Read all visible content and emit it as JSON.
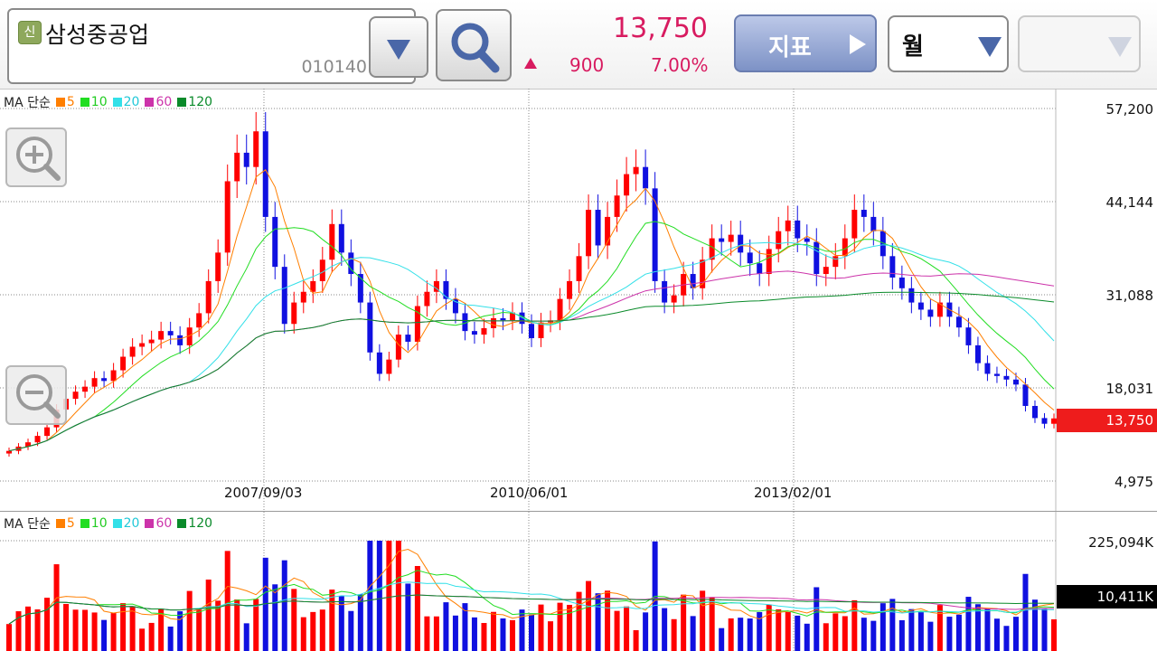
{
  "header": {
    "badge": "신",
    "stock_name": "삼성중공업",
    "stock_code": "010140",
    "price": "13,750",
    "change": "900",
    "change_pct": "7.00%",
    "indicator_label": "지표",
    "period_label": "월",
    "empty_select": "",
    "accent_up": "#d81b60"
  },
  "price_panel": {
    "legend_prefix": "MA 단순",
    "ma": [
      {
        "label": "5",
        "color": "#ff7f00"
      },
      {
        "label": "10",
        "color": "#22dd22"
      },
      {
        "label": "20",
        "color": "#33e0e8"
      },
      {
        "label": "60",
        "color": "#cc33aa"
      },
      {
        "label": "120",
        "color": "#0a8a2a"
      }
    ],
    "y_ticks": [
      "57,200",
      "44,144",
      "31,088",
      "18,031",
      "4,975"
    ],
    "x_ticks": [
      "2007/09/03",
      "2010/06/01",
      "2013/02/01"
    ],
    "current_tag": "13,750"
  },
  "volume_panel": {
    "legend_prefix": "MA 단순",
    "y_ticks": [
      "225,094K"
    ],
    "current_tag": "10,411K"
  },
  "chart_data": {
    "type": "candlestick",
    "ylim": [
      4975,
      57200
    ],
    "series_note": "monthly candles",
    "x_ticks": [
      "2007/09/03",
      "2010/06/01",
      "2013/02/01"
    ],
    "closes": [
      9200,
      9800,
      10400,
      11300,
      12500,
      15000,
      16500,
      17500,
      18200,
      19400,
      19000,
      20500,
      22400,
      23800,
      24300,
      24800,
      26000,
      25400,
      24000,
      26500,
      28500,
      33000,
      37000,
      47000,
      51000,
      49000,
      54000,
      42000,
      35000,
      27000,
      30000,
      31500,
      33000,
      36000,
      41000,
      37000,
      34000,
      30000,
      23000,
      20000,
      22000,
      25500,
      24500,
      29500,
      31500,
      33000,
      30500,
      28500,
      26000,
      25500,
      26400,
      27800,
      27500,
      28600,
      27000,
      25000,
      27200,
      27500,
      30500,
      33000,
      36500,
      43000,
      38000,
      42000,
      45000,
      48000,
      49000,
      46000,
      33000,
      30000,
      31000,
      34000,
      32000,
      36000,
      39000,
      38500,
      39500,
      37000,
      35500,
      34000,
      37500,
      40000,
      41500,
      39000,
      38500,
      34000,
      35000,
      36500,
      39000,
      43000,
      42000,
      40000,
      36500,
      33500,
      32000,
      30000,
      29000,
      28000,
      30000,
      28000,
      26500,
      24000,
      21500,
      20000,
      19700,
      19200,
      18500,
      15500,
      13800,
      13000,
      13750
    ],
    "volume_ylim_top": 225094
  }
}
